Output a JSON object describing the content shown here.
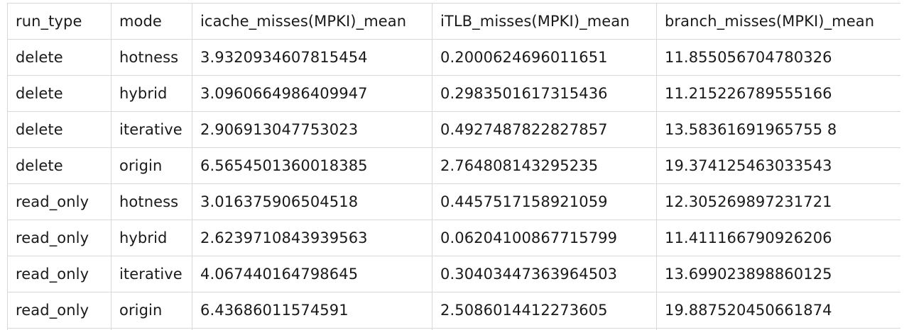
{
  "table": {
    "columns": [
      "run_type",
      "mode",
      "icache_misses(MPKI)_mean",
      "iTLB_misses(MPKI)_mean",
      "branch_misses(MPKI)_mean"
    ],
    "rows": [
      [
        "delete",
        "hotness",
        "3.9320934607815454",
        "0.2000624696011651",
        "11.855056704780326"
      ],
      [
        "delete",
        "hybrid",
        "3.0960664986409947",
        "0.2983501617315436",
        "11.215226789555166"
      ],
      [
        "delete",
        "iterative",
        "2.906913047753023",
        "0.4927487822827857",
        "13.58361691965755 8"
      ],
      [
        "delete",
        "origin",
        "6.5654501360018385",
        "2.764808143295235",
        "19.374125463033543"
      ],
      [
        "read_only",
        "hotness",
        "3.016375906504518",
        "0.4457517158921059",
        "12.305269897231721"
      ],
      [
        "read_only",
        "hybrid",
        "2.6239710843939563",
        "0.06204100867715799",
        "11.411166790926206"
      ],
      [
        "read_only",
        "iterative",
        "4.067440164798645",
        "0.30403447363964503",
        "13.699023898860125"
      ],
      [
        "read_only",
        "origin",
        "6.43686011574591",
        "2.5086014412273605",
        "19.887520450661874"
      ]
    ]
  }
}
